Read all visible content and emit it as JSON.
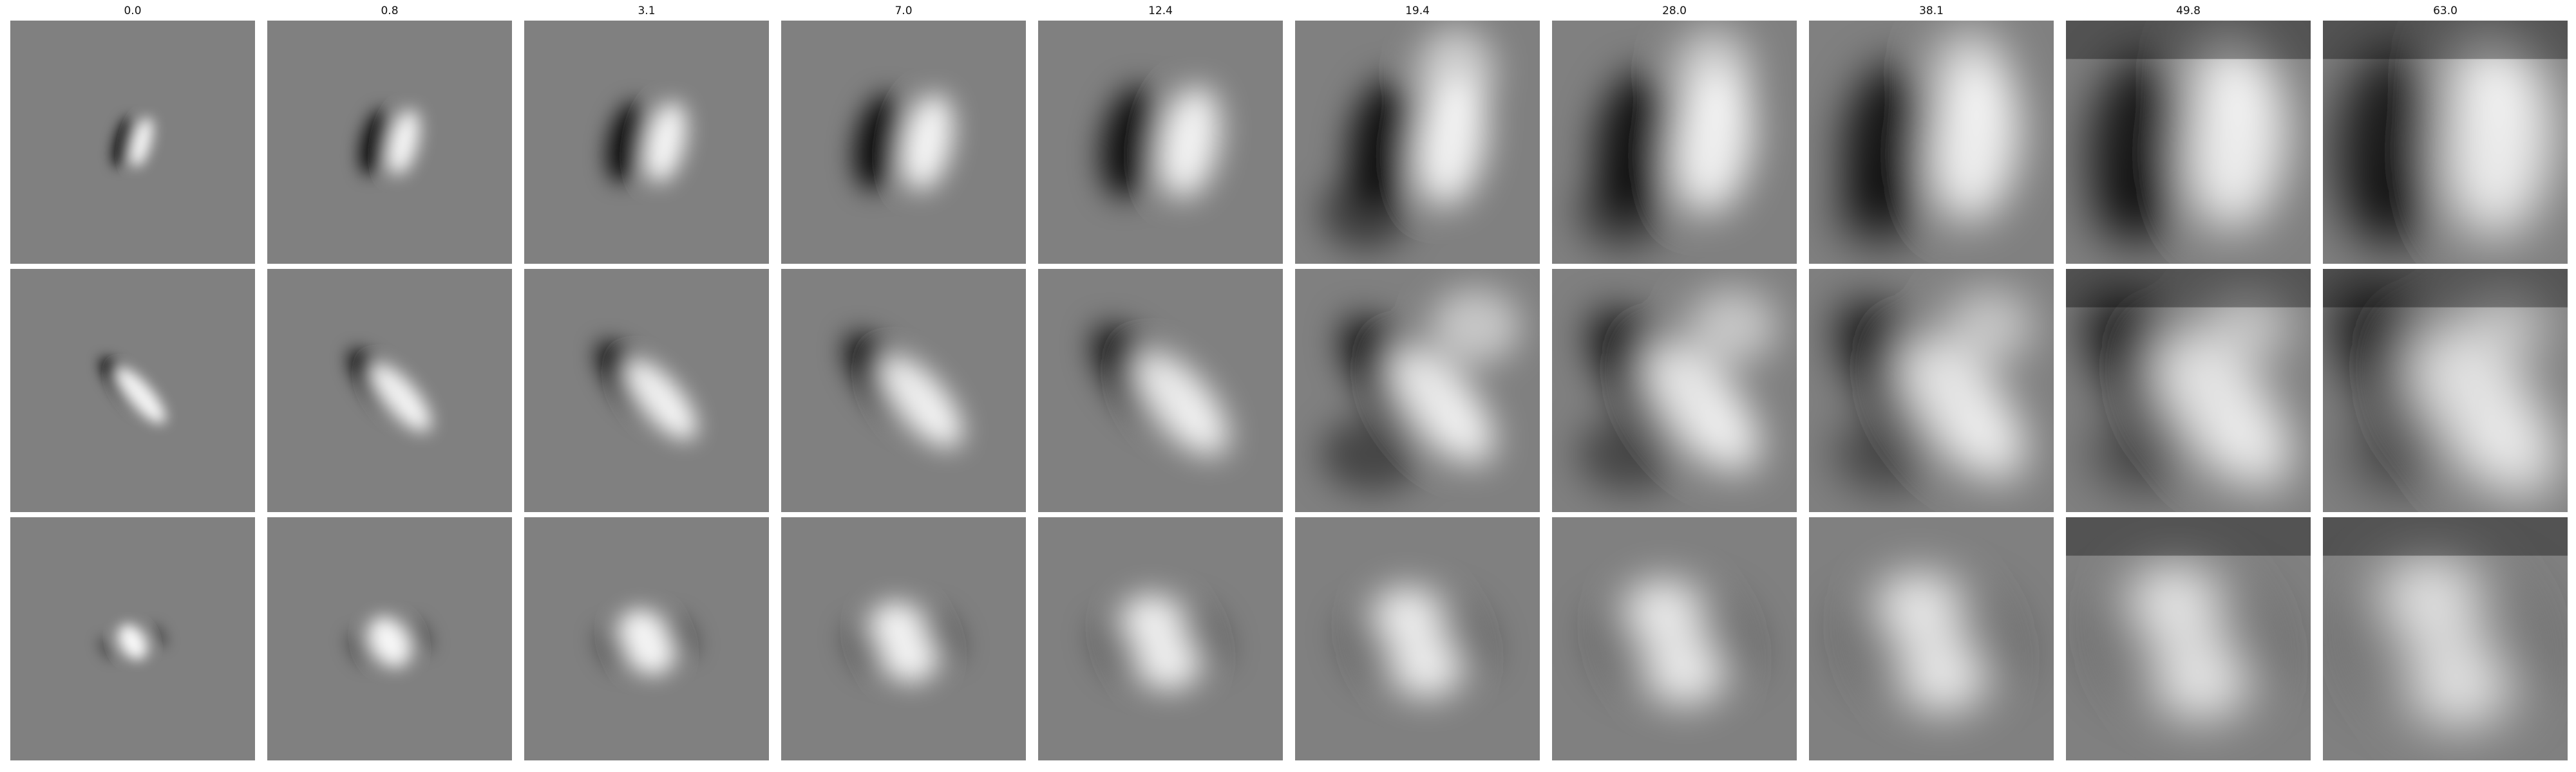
{
  "figure": {
    "column_labels": [
      "0.0",
      "0.8",
      "3.1",
      "7.0",
      "12.4",
      "19.4",
      "28.0",
      "38.1",
      "49.8",
      "63.0"
    ],
    "row_count": 3,
    "colors": {
      "background": "#ffffff",
      "panel_gray": "#808080"
    }
  }
}
